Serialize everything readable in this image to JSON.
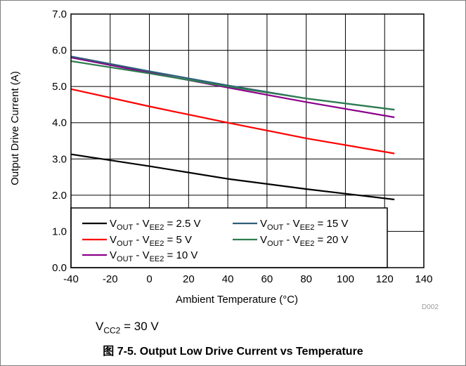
{
  "chart_data": {
    "type": "line",
    "title": "",
    "xlabel": "Ambient Temperature (°C)",
    "ylabel": "Output Drive Current (A)",
    "xlim": [
      -40,
      140
    ],
    "ylim": [
      0,
      7
    ],
    "xticks": [
      -40,
      -20,
      0,
      20,
      40,
      60,
      80,
      100,
      120,
      140
    ],
    "yticks": [
      "0.0",
      "1.0",
      "2.0",
      "3.0",
      "4.0",
      "5.0",
      "6.0",
      "7.0"
    ],
    "grid": true,
    "legend_position": "bottom-left",
    "series": [
      {
        "label_main": "V",
        "label_sub1": "OUT",
        "label_mid": " - V",
        "label_sub2": "EE2",
        "label_tail": " = 2.5 V",
        "color": "#000000",
        "points": [
          [
            -40,
            3.13
          ],
          [
            0,
            2.8
          ],
          [
            40,
            2.45
          ],
          [
            80,
            2.17
          ],
          [
            125,
            1.88
          ]
        ]
      },
      {
        "label_main": "V",
        "label_sub1": "OUT",
        "label_mid": " - V",
        "label_sub2": "EE2",
        "label_tail": " =  5 V",
        "color": "#ff0000",
        "points": [
          [
            -40,
            4.93
          ],
          [
            0,
            4.45
          ],
          [
            40,
            4.0
          ],
          [
            80,
            3.57
          ],
          [
            125,
            3.15
          ]
        ]
      },
      {
        "label_main": "V",
        "label_sub1": "OUT",
        "label_mid": " - V",
        "label_sub2": "EE2",
        "label_tail": " =  10 V",
        "color": "#8b008b",
        "points": [
          [
            -40,
            5.8
          ],
          [
            0,
            5.38
          ],
          [
            40,
            4.97
          ],
          [
            80,
            4.57
          ],
          [
            125,
            4.15
          ]
        ]
      },
      {
        "label_main": "V",
        "label_sub1": "OUT",
        "label_mid": " - V",
        "label_sub2": "EE2",
        "label_tail": " =  15 V",
        "color": "#2e5e7a",
        "points": [
          [
            -40,
            5.83
          ],
          [
            0,
            5.42
          ],
          [
            40,
            5.03
          ],
          [
            80,
            4.67
          ],
          [
            125,
            4.36
          ]
        ]
      },
      {
        "label_main": "V",
        "label_sub1": "OUT",
        "label_mid": " - V",
        "label_sub2": "EE2",
        "label_tail": " =  20 V",
        "color": "#2e7d4f",
        "points": [
          [
            -40,
            5.7
          ],
          [
            0,
            5.36
          ],
          [
            40,
            5.0
          ],
          [
            80,
            4.67
          ],
          [
            125,
            4.36
          ]
        ]
      }
    ]
  },
  "figure_id": "D002",
  "condition": {
    "main": "V",
    "sub": "CC2",
    "tail": " = 30 V"
  },
  "caption": "图 7-5. Output Low Drive Current vs Temperature"
}
